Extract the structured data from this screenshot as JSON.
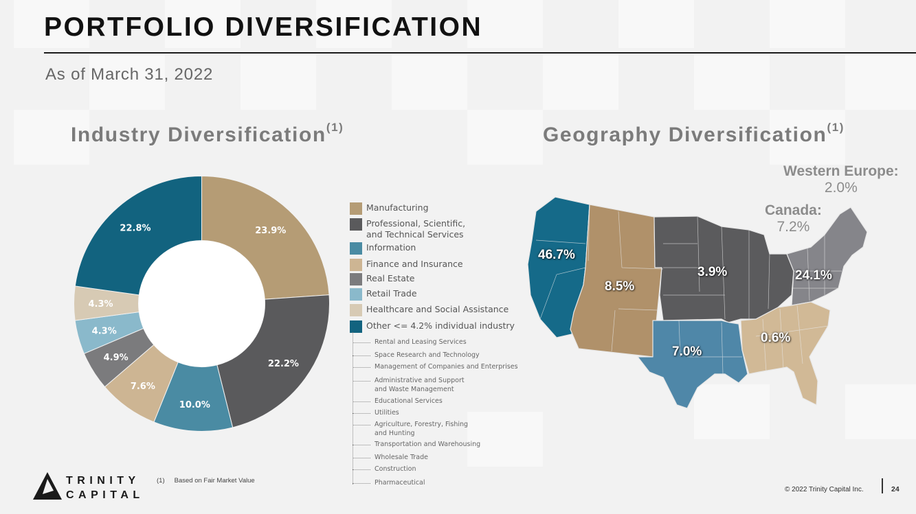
{
  "header": {
    "title": "PORTFOLIO DIVERSIFICATION",
    "subtitle": "As of March 31, 2022"
  },
  "industry": {
    "heading": "Industry Diversification",
    "footnote_marker": "(1)"
  },
  "geography": {
    "heading": "Geography Diversification",
    "footnote_marker": "(1)"
  },
  "chart_data": [
    {
      "type": "pie",
      "variant": "donut",
      "title": "Industry Diversification",
      "categories": [
        "Manufacturing",
        "Professional, Scientific,\nand Technical Services",
        "Information",
        "Finance and Insurance",
        "Real Estate",
        "Retail Trade",
        "Healthcare and Social Assistance",
        "Other <= 4.2% individual industry"
      ],
      "values": [
        23.9,
        22.2,
        10.0,
        7.6,
        4.9,
        4.3,
        4.3,
        22.8
      ],
      "value_labels": [
        "23.9%",
        "22.2%",
        "10.0%",
        "7.6%",
        "4.9%",
        "4.3%",
        "4.3%",
        "22.8%"
      ],
      "colors": [
        "#b59c75",
        "#5a5a5c",
        "#4a8ba3",
        "#cdb593",
        "#7b7b7d",
        "#8ab9cb",
        "#d7cab4",
        "#12637f"
      ],
      "legend_placement": "right",
      "other_breakdown": [
        "Rental and Leasing Services",
        "Space Research and Technology",
        "Management of Companies and Enterprises",
        "Administrative and Support\nand Waste Management",
        "Educational Services",
        "Utilities",
        "Agriculture, Forestry, Fishing\nand Hunting",
        "Transportation and Warehousing",
        "Wholesale Trade",
        "Construction",
        "Pharmaceutical"
      ]
    },
    {
      "type": "map",
      "title": "Geography Diversification",
      "regions": [
        {
          "name": "West",
          "value": 46.7,
          "label": "46.7%",
          "color": "#156a89"
        },
        {
          "name": "Mountain",
          "value": 8.5,
          "label": "8.5%",
          "color": "#b0916a"
        },
        {
          "name": "Midwest",
          "value": 3.9,
          "label": "3.9%",
          "color": "#5b5b5d"
        },
        {
          "name": "Northeast",
          "value": 24.1,
          "label": "24.1%",
          "color": "#85858a"
        },
        {
          "name": "South Central",
          "value": 7.0,
          "label": "7.0%",
          "color": "#4f87a8"
        },
        {
          "name": "Southeast",
          "value": 0.6,
          "label": "0.6%",
          "color": "#d1b996"
        }
      ],
      "international": [
        {
          "name": "Western Europe:",
          "value": 2.0,
          "label": "2.0%"
        },
        {
          "name": "Canada:",
          "value": 7.2,
          "label": "7.2%"
        }
      ]
    }
  ],
  "footer": {
    "footnote_num": "(1)",
    "footnote_text": "Based on Fair Market Value",
    "logo_line1": "TRINITY",
    "logo_line2": "CAPITAL",
    "copyright": "© 2022 Trinity Capital Inc.",
    "page_number": "24"
  }
}
